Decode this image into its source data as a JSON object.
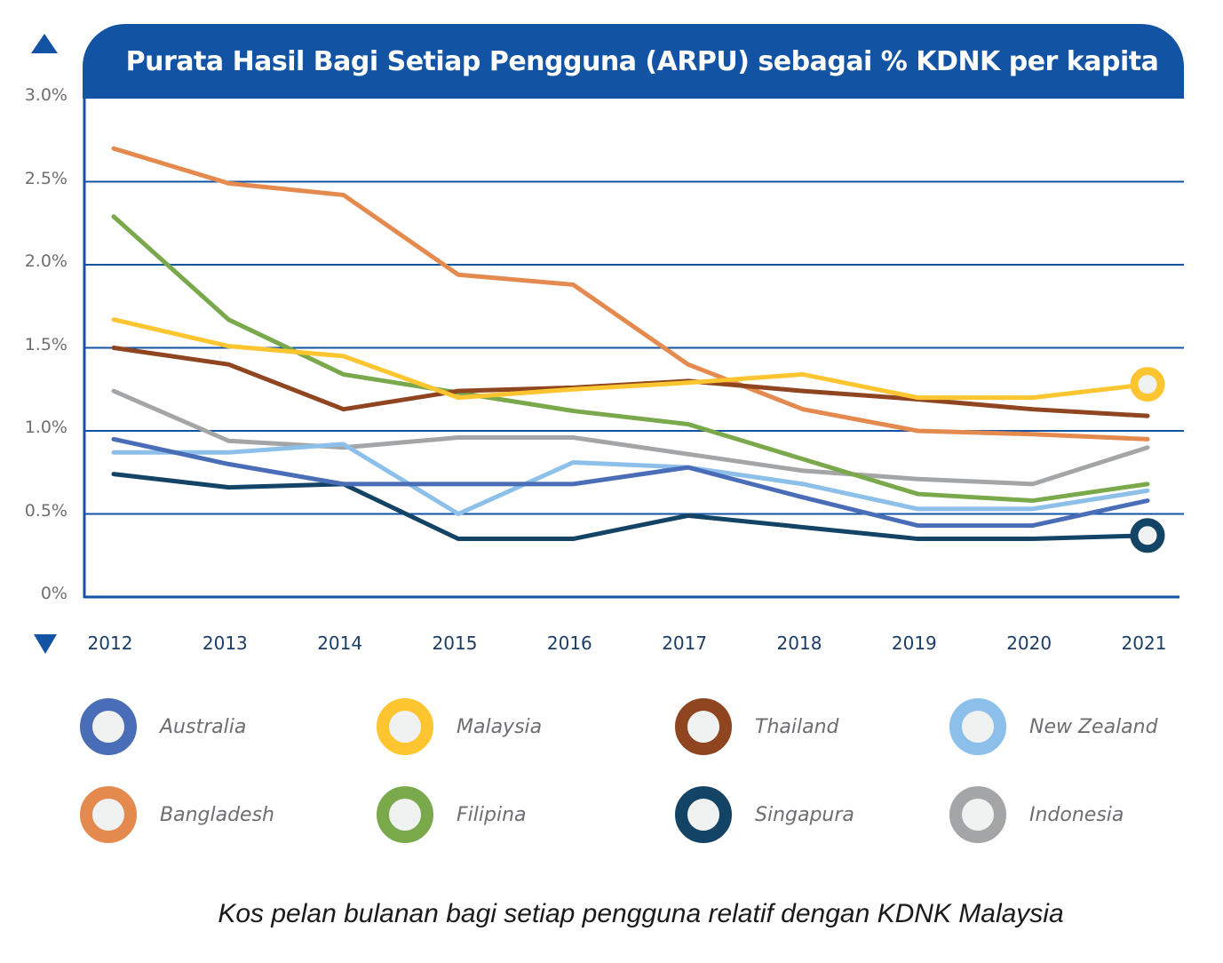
{
  "chart_data": {
    "type": "line",
    "title": "Purata Hasil Bagi Setiap Pengguna (ARPU) sebagai % KDNK per kapita",
    "xlabel": "",
    "ylabel": "",
    "x": [
      "2012",
      "2013",
      "2014",
      "2015",
      "2016",
      "2017",
      "2018",
      "2019",
      "2020",
      "2021"
    ],
    "ylim": [
      0,
      3.0
    ],
    "yticks": [
      0,
      0.5,
      1.0,
      1.5,
      2.0,
      2.5,
      3.0
    ],
    "ytick_labels": [
      "0%",
      "0.5%",
      "1.0%",
      "1.5%",
      "2.0%",
      "2.5%",
      "3.0%"
    ],
    "grid": true,
    "legend_position": "bottom",
    "series": [
      {
        "name": "Australia",
        "color": "#4a6db8",
        "values": [
          0.95,
          0.8,
          0.68,
          0.68,
          0.68,
          0.78,
          0.6,
          0.43,
          0.43,
          0.58
        ]
      },
      {
        "name": "Malaysia",
        "color": "#fdc52f",
        "values": [
          1.67,
          1.51,
          1.45,
          1.2,
          1.25,
          1.29,
          1.34,
          1.2,
          1.2,
          1.28
        ],
        "end_marker": true
      },
      {
        "name": "Thailand",
        "color": "#8e4520",
        "values": [
          1.5,
          1.4,
          1.13,
          1.24,
          1.26,
          1.3,
          1.24,
          1.19,
          1.13,
          1.09
        ]
      },
      {
        "name": "New Zealand",
        "color": "#8cbfe9",
        "values": [
          0.87,
          0.87,
          0.92,
          0.5,
          0.81,
          0.78,
          0.68,
          0.53,
          0.53,
          0.64
        ]
      },
      {
        "name": "Bangladesh",
        "color": "#e58a4f",
        "values": [
          2.7,
          2.49,
          2.42,
          1.94,
          1.88,
          1.4,
          1.13,
          1.0,
          0.98,
          0.95
        ]
      },
      {
        "name": "Filipina",
        "color": "#7aa94b",
        "values": [
          2.29,
          1.67,
          1.34,
          1.23,
          1.12,
          1.04,
          0.83,
          0.62,
          0.58,
          0.68
        ]
      },
      {
        "name": "Singapura",
        "color": "#134365",
        "values": [
          0.74,
          0.66,
          0.68,
          0.35,
          0.35,
          0.49,
          0.42,
          0.35,
          0.35,
          0.37
        ],
        "end_marker": true
      },
      {
        "name": "Indonesia",
        "color": "#a4a5a6",
        "values": [
          1.24,
          0.94,
          0.9,
          0.96,
          0.96,
          0.86,
          0.76,
          0.71,
          0.68,
          0.9
        ]
      }
    ],
    "caption": "Kos pelan bulanan bagi setiap pengguna relatif dengan KDNK Malaysia"
  },
  "colors": {
    "accent": "#1353a3",
    "marker_fill": "#f0f1f1"
  },
  "icons": {
    "up": "triangle-up",
    "down": "triangle-down"
  }
}
